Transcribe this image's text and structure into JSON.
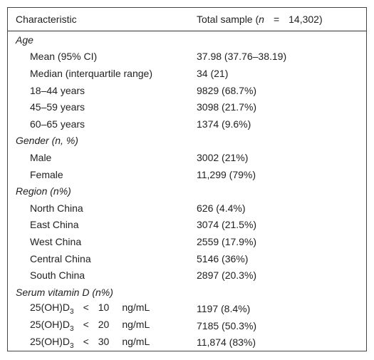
{
  "header": {
    "col1": "Characteristic",
    "col2": {
      "prefix": "Total sample (",
      "n": "n",
      "eq": "=",
      "total": "14,302)"
    }
  },
  "sections": [
    {
      "title": "Age",
      "rows": [
        {
          "label": "Mean (95% CI)",
          "value": "37.98 (37.76–38.19)"
        },
        {
          "label": "Median (interquartile range)",
          "value": "34 (21)"
        },
        {
          "label": "18–44 years",
          "value": "9829 (68.7%)"
        },
        {
          "label": "45–59 years",
          "value": "3098 (21.7%)"
        },
        {
          "label": "60–65 years",
          "value": "1374 (9.6%)"
        }
      ]
    },
    {
      "title": "Gender (n, %)",
      "rows": [
        {
          "label": "Male",
          "value": "3002 (21%)"
        },
        {
          "label": "Female",
          "value": "11,299 (79%)"
        }
      ]
    },
    {
      "title": "Region (n%)",
      "rows": [
        {
          "label": "North China",
          "value": "626 (4.4%)"
        },
        {
          "label": "East China",
          "value": "3074 (21.5%)"
        },
        {
          "label": "West China",
          "value": "2559 (17.9%)"
        },
        {
          "label": "Central China",
          "value": "5146 (36%)"
        },
        {
          "label": "South China",
          "value": "2897 (20.3%)"
        }
      ]
    },
    {
      "title": "Serum vitamin D (n%)",
      "rows": [
        {
          "label": {
            "base": "25(OH)D",
            "sub": "3",
            "op": "<",
            "num": "10",
            "unit": "ng/mL"
          },
          "value": "1197 (8.4%)"
        },
        {
          "label": {
            "base": "25(OH)D",
            "sub": "3",
            "op": "<",
            "num": "20",
            "unit": "ng/mL"
          },
          "value": "7185 (50.3%)"
        },
        {
          "label": {
            "base": "25(OH)D",
            "sub": "3",
            "op": "<",
            "num": "30",
            "unit": "ng/mL"
          },
          "value": "11,874 (83%)"
        }
      ]
    }
  ]
}
